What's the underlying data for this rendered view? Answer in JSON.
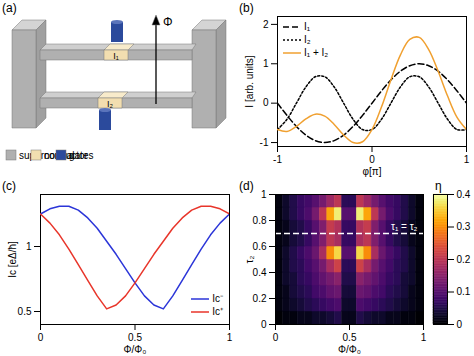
{
  "chart_data": [
    {
      "panel": "(a)",
      "type": "diagram",
      "flux_label": "Φ",
      "junction_labels": [
        "I₁",
        "I₂"
      ],
      "legend_items": [
        {
          "name": "superconductor",
          "color": "#b0b0b0"
        },
        {
          "name": "normal",
          "color": "#f2deb0"
        },
        {
          "name": "gates",
          "color": "#2b4a9c"
        }
      ]
    },
    {
      "panel": "(b)",
      "type": "line",
      "xlabel": "φ[π]",
      "ylabel": "I [arb. units]",
      "x": [
        -1,
        -0.9,
        -0.8,
        -0.7,
        -0.6,
        -0.5,
        -0.4,
        -0.3,
        -0.2,
        -0.1,
        0,
        0.1,
        0.2,
        0.3,
        0.4,
        0.5,
        0.6,
        0.7,
        0.8,
        0.9,
        1
      ],
      "xlim": [
        -1,
        1
      ],
      "xticks": [
        -1,
        0,
        1
      ],
      "ylim": [
        -1.1,
        2.2
      ],
      "yticks": [
        -1,
        0,
        1,
        2
      ],
      "legend": "upper left",
      "series": [
        {
          "name": "I₁",
          "color": "#000000",
          "line_style": "dashed",
          "values": [
            0,
            -0.31,
            -0.59,
            -0.81,
            -0.95,
            -1,
            -0.95,
            -0.81,
            -0.59,
            -0.31,
            0,
            0.31,
            0.59,
            0.81,
            0.95,
            1,
            0.95,
            0.81,
            0.59,
            0.31,
            0
          ]
        },
        {
          "name": "I₂",
          "color": "#000000",
          "line_style": "dotted",
          "values": [
            -0.67,
            -0.41,
            0,
            0.41,
            0.67,
            0.67,
            0.41,
            0,
            -0.41,
            -0.67,
            -0.67,
            -0.41,
            0,
            0.41,
            0.67,
            0.67,
            0.41,
            0,
            -0.41,
            -0.67,
            -0.67
          ]
        },
        {
          "name": "I₁ + I₂",
          "color": "#f0a030",
          "line_style": "solid",
          "values": [
            -0.67,
            -0.72,
            -0.59,
            -0.4,
            -0.28,
            -0.33,
            -0.54,
            -0.81,
            -1,
            -0.98,
            -0.67,
            -0.1,
            0.59,
            1.22,
            1.62,
            1.67,
            1.36,
            0.81,
            0.18,
            -0.36,
            -0.67
          ]
        }
      ]
    },
    {
      "panel": "(c)",
      "type": "line",
      "xlabel": "Φ/Φ₀",
      "ylabel": "Ic [eΔ/ħ]",
      "x": [
        0,
        0.05,
        0.1,
        0.15,
        0.2,
        0.25,
        0.3,
        0.35,
        0.4,
        0.45,
        0.5,
        0.55,
        0.6,
        0.65,
        0.7,
        0.75,
        0.8,
        0.85,
        0.9,
        0.95,
        1
      ],
      "xlim": [
        0,
        1
      ],
      "xticks": [
        0,
        0.5,
        1
      ],
      "ylim": [
        0.4,
        1.4
      ],
      "yticks": [
        0.5,
        1
      ],
      "legend": "lower right",
      "series": [
        {
          "name": "Ic⁻",
          "color": "#2b35d8",
          "line_style": "solid",
          "values": [
            1.25,
            1.29,
            1.31,
            1.31,
            1.28,
            1.22,
            1.14,
            1.04,
            0.94,
            0.83,
            0.72,
            0.62,
            0.55,
            0.52,
            0.62,
            0.74,
            0.86,
            0.98,
            1.09,
            1.18,
            1.25
          ]
        },
        {
          "name": "Ic⁺",
          "color": "#e8352a",
          "line_style": "solid",
          "values": [
            1.25,
            1.18,
            1.09,
            0.98,
            0.86,
            0.74,
            0.62,
            0.52,
            0.55,
            0.62,
            0.72,
            0.83,
            0.94,
            1.04,
            1.14,
            1.22,
            1.28,
            1.31,
            1.31,
            1.29,
            1.25
          ]
        }
      ]
    },
    {
      "panel": "(d)",
      "type": "heatmap",
      "xlabel": "Φ/Φ₀",
      "ylabel": "τ₂",
      "x": [
        0.025,
        0.075,
        0.125,
        0.175,
        0.225,
        0.275,
        0.325,
        0.375,
        0.425,
        0.475,
        0.525,
        0.575,
        0.625,
        0.675,
        0.725,
        0.775,
        0.825,
        0.875,
        0.925,
        0.975
      ],
      "y": [
        0.05,
        0.15,
        0.25,
        0.35,
        0.45,
        0.55,
        0.65,
        0.75,
        0.85,
        0.95
      ],
      "z": [
        [
          0,
          0.01,
          0.01,
          0.02,
          0.02,
          0.03,
          0.03,
          0.04,
          0.05,
          0.02,
          0.02,
          0.05,
          0.04,
          0.03,
          0.03,
          0.02,
          0.02,
          0.01,
          0.01,
          0
        ],
        [
          0.01,
          0.02,
          0.03,
          0.04,
          0.05,
          0.06,
          0.07,
          0.08,
          0.09,
          0.03,
          0.03,
          0.09,
          0.08,
          0.07,
          0.06,
          0.05,
          0.04,
          0.03,
          0.02,
          0.01
        ],
        [
          0.01,
          0.02,
          0.04,
          0.05,
          0.06,
          0.08,
          0.09,
          0.11,
          0.12,
          0.04,
          0.04,
          0.12,
          0.11,
          0.09,
          0.08,
          0.06,
          0.05,
          0.04,
          0.02,
          0.01
        ],
        [
          0.01,
          0.03,
          0.04,
          0.06,
          0.07,
          0.09,
          0.11,
          0.13,
          0.15,
          0.05,
          0.05,
          0.15,
          0.13,
          0.11,
          0.09,
          0.07,
          0.06,
          0.04,
          0.03,
          0.01
        ],
        [
          0.01,
          0.03,
          0.05,
          0.06,
          0.08,
          0.1,
          0.13,
          0.18,
          0.22,
          0.06,
          0.06,
          0.22,
          0.18,
          0.13,
          0.1,
          0.08,
          0.06,
          0.05,
          0.03,
          0.01
        ],
        [
          0.01,
          0.03,
          0.05,
          0.07,
          0.09,
          0.12,
          0.18,
          0.3,
          0.36,
          0.1,
          0.1,
          0.36,
          0.3,
          0.18,
          0.12,
          0.09,
          0.07,
          0.05,
          0.03,
          0.01
        ],
        [
          0.01,
          0.02,
          0.04,
          0.05,
          0.07,
          0.1,
          0.14,
          0.2,
          0.18,
          0.07,
          0.07,
          0.18,
          0.2,
          0.14,
          0.1,
          0.07,
          0.05,
          0.04,
          0.02,
          0.01
        ],
        [
          0.01,
          0.02,
          0.04,
          0.05,
          0.07,
          0.1,
          0.14,
          0.21,
          0.19,
          0.07,
          0.07,
          0.19,
          0.21,
          0.14,
          0.1,
          0.07,
          0.05,
          0.04,
          0.02,
          0.01
        ],
        [
          0.01,
          0.03,
          0.05,
          0.07,
          0.09,
          0.13,
          0.2,
          0.32,
          0.38,
          0.1,
          0.1,
          0.38,
          0.32,
          0.2,
          0.13,
          0.09,
          0.07,
          0.05,
          0.03,
          0.01
        ],
        [
          0.01,
          0.03,
          0.05,
          0.07,
          0.08,
          0.1,
          0.13,
          0.17,
          0.2,
          0.06,
          0.06,
          0.2,
          0.17,
          0.13,
          0.1,
          0.08,
          0.07,
          0.05,
          0.03,
          0.01
        ]
      ],
      "xlim": [
        0,
        1
      ],
      "xticks": [
        0,
        0.5,
        1
      ],
      "ylim": [
        0,
        1
      ],
      "yticks": [
        0,
        0.2,
        0.4,
        0.6,
        0.8,
        1
      ],
      "colorbar": {
        "label": "η",
        "range": [
          0,
          0.4
        ],
        "ticks": [
          0,
          0.1,
          0.2,
          0.3,
          0.4
        ]
      },
      "reference_line": {
        "y": 0.7,
        "label": "τ₁ = τ₂",
        "color": "#ffffff",
        "line_style": "dashed"
      }
    }
  ]
}
